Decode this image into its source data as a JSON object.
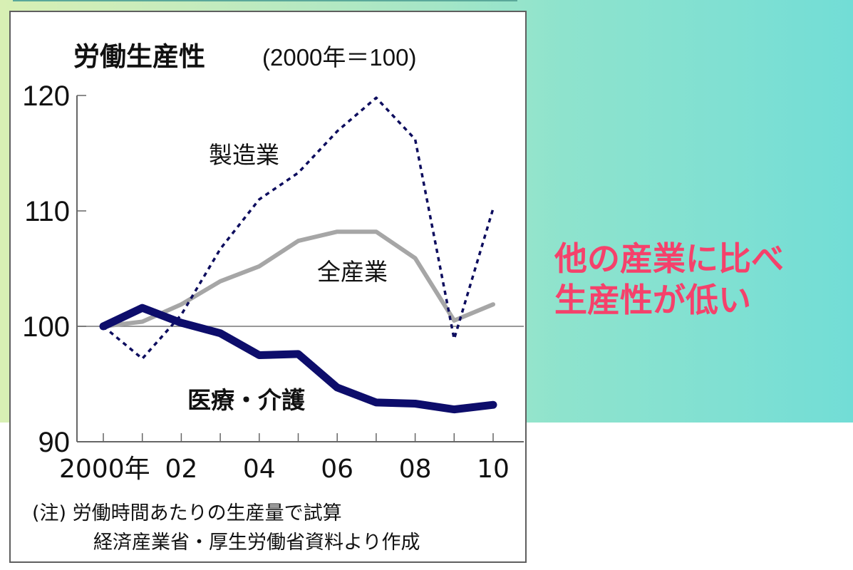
{
  "chart_data": {
    "type": "line",
    "title": "労働生産性",
    "subtitle": "(2000年＝100)",
    "xlabel": "",
    "ylabel": "",
    "x": [
      2000,
      2001,
      2002,
      2003,
      2004,
      2005,
      2006,
      2007,
      2008,
      2009,
      2010
    ],
    "x_tick_labels": [
      "2000年",
      "02",
      "04",
      "06",
      "08",
      "10"
    ],
    "y_tick_labels": [
      "120",
      "110",
      "100",
      "90"
    ],
    "ylim": [
      90,
      120
    ],
    "reference_line": 100,
    "grid": false,
    "legend": "inline labels",
    "series": [
      {
        "name": "製造業",
        "style": "dotted",
        "color": "#0d0d5e",
        "values": [
          100,
          97.2,
          101.0,
          106.7,
          111.0,
          113.3,
          116.9,
          119.8,
          116.2,
          98.9,
          110.2
        ]
      },
      {
        "name": "全産業",
        "style": "solid",
        "color": "#a6a6a6",
        "values": [
          100,
          100.4,
          101.9,
          103.9,
          105.2,
          107.4,
          108.2,
          108.2,
          105.9,
          100.5,
          101.9
        ]
      },
      {
        "name": "医療・介護",
        "style": "solid-thick",
        "color": "#0d0d6b",
        "values": [
          100,
          101.6,
          100.3,
          99.4,
          97.5,
          97.6,
          94.7,
          93.4,
          93.3,
          92.8,
          93.2
        ]
      }
    ],
    "notes": [
      "(注) 労働時間あたりの生産量で試算",
      "経済産業省・厚生労働省資料より作成"
    ]
  },
  "chart": {
    "title": "労働生産性",
    "subtitle": "(2000年＝100)",
    "y_ticks": [
      {
        "label": "120",
        "value": 120
      },
      {
        "label": "110",
        "value": 110
      },
      {
        "label": "100",
        "value": 100
      },
      {
        "label": "90",
        "value": 90
      }
    ],
    "x_labels": [
      {
        "label": "2000年",
        "year": 2000
      },
      {
        "label": "02",
        "year": 2002
      },
      {
        "label": "04",
        "year": 2004
      },
      {
        "label": "06",
        "year": 2006
      },
      {
        "label": "08",
        "year": 2008
      },
      {
        "label": "10",
        "year": 2010
      }
    ],
    "labels": {
      "manufacturing": "製造業",
      "all_industries": "全産業",
      "medical_care": "医療・介護"
    },
    "note_line1": "(注) 労働時間あたりの生産量で試算",
    "note_line2": "経済産業省・厚生労働省資料より作成"
  },
  "side_note": {
    "line1": "他の産業に比べ",
    "line2": "生産性が低い",
    "color": "#f5416b"
  },
  "colors": {
    "background_left": "#d8f0b4",
    "background_right": "#72ddd6",
    "manufacturing": "#0d0d5e",
    "all_industries": "#a6a6a6",
    "medical_care": "#0d0d6b"
  }
}
